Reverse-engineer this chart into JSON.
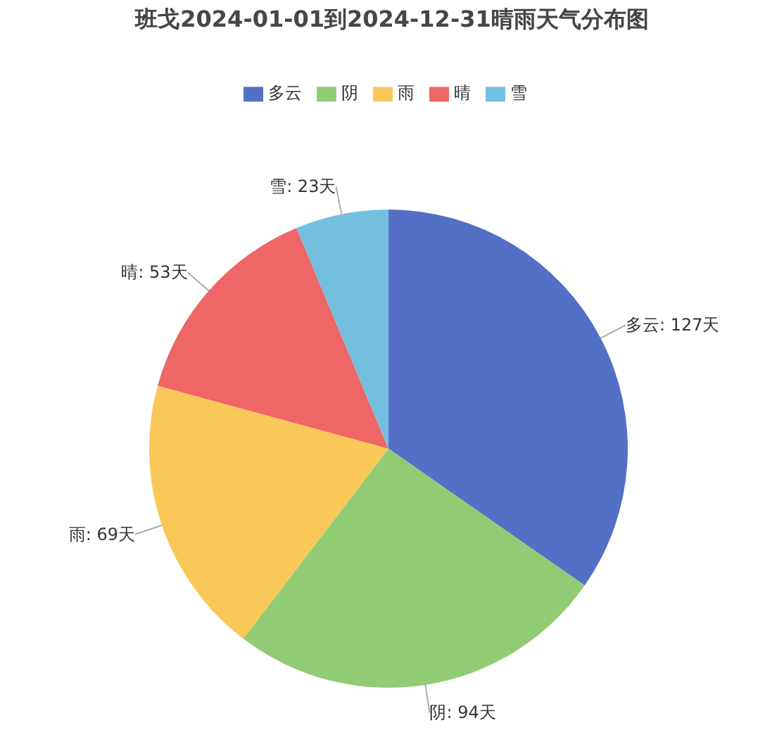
{
  "chart_data": {
    "type": "pie",
    "title": "班戈2024-01-01到2024-12-31晴雨天气分布图",
    "categories": [
      "多云",
      "阴",
      "雨",
      "晴",
      "雪"
    ],
    "values": [
      127,
      94,
      69,
      53,
      23
    ],
    "colors": [
      "#5470c6",
      "#91cc75",
      "#fac858",
      "#ee6666",
      "#73c0de"
    ],
    "value_labels": [
      "多云: 127天",
      "阴: 94天",
      "雨: 69天",
      "晴: 53天",
      "雪: 23天"
    ],
    "legend": "top"
  }
}
